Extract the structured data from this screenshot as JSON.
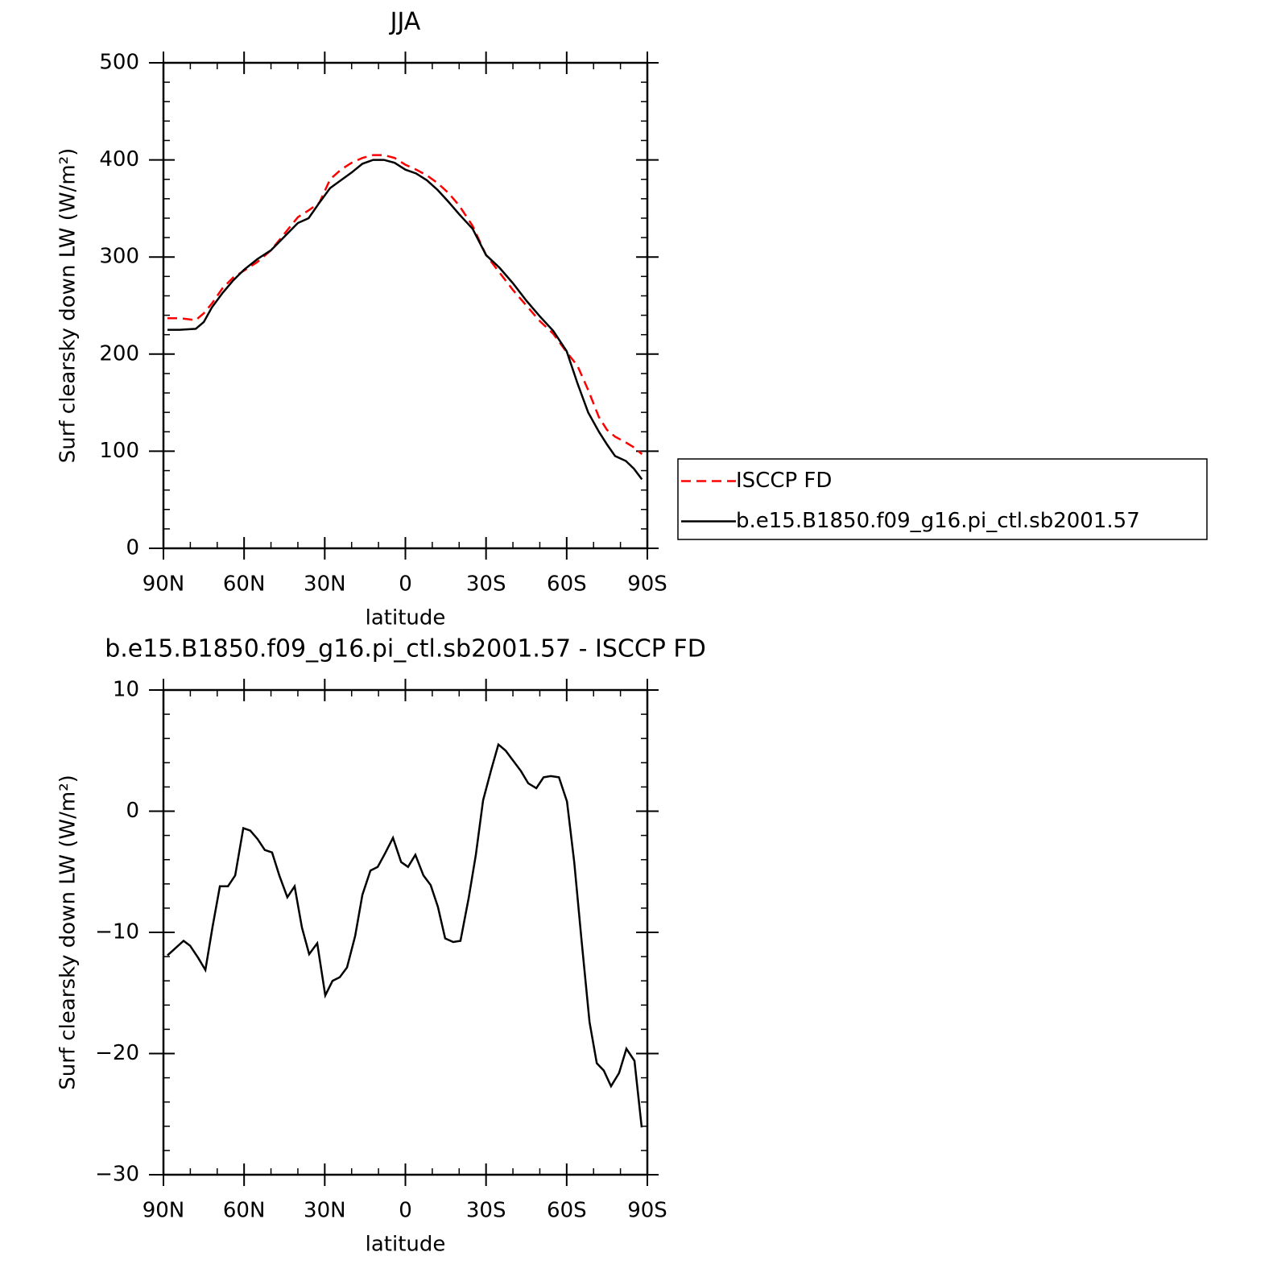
{
  "chart_data": [
    {
      "type": "line",
      "title": "JJA",
      "x": [
        88.5,
        84,
        78,
        75,
        72,
        68,
        64,
        60,
        55,
        50,
        45,
        40,
        36,
        32,
        28,
        24,
        20,
        16,
        12,
        8,
        4,
        0,
        -4,
        -8,
        -12,
        -16,
        -20,
        -25,
        -30,
        -35,
        -40,
        -45,
        -50,
        -55,
        -60,
        -64,
        -68,
        -72,
        -75,
        -78,
        -82,
        -85,
        -88
      ],
      "series": [
        {
          "name": "ISCCP FD",
          "color": "#ff0000",
          "linestyle": "dashed",
          "values": [
            237,
            237,
            235,
            242,
            252,
            268,
            279,
            286,
            295,
            307,
            324,
            341,
            348,
            356,
            380,
            390,
            397,
            402,
            405,
            405,
            402,
            395,
            390,
            384,
            376,
            366,
            353,
            332,
            302,
            284,
            266,
            250,
            234,
            221,
            202,
            188,
            163,
            135,
            122,
            115,
            109,
            104,
            97
          ]
        },
        {
          "name": "b.e15.B1850.f09_g16.pi_ctl.sb2001.57",
          "color": "#000000",
          "linestyle": "solid",
          "values": [
            225,
            225,
            226,
            233,
            248,
            263,
            276,
            287,
            298,
            307,
            321,
            335,
            340,
            356,
            371,
            379,
            387,
            396,
            400,
            400,
            397,
            390,
            386,
            379,
            369,
            357,
            344,
            329,
            302,
            289,
            273,
            255,
            239,
            224,
            203,
            170,
            140,
            120,
            107,
            95,
            90,
            82,
            71
          ]
        }
      ],
      "xlabel": "latitude",
      "ylabel": "Surf clearsky down LW (W/m²)",
      "xlim": [
        90,
        -90
      ],
      "ylim": [
        0,
        500
      ],
      "xticks": [
        {
          "value": 90,
          "label": "90N"
        },
        {
          "value": 60,
          "label": "60N"
        },
        {
          "value": 30,
          "label": "30N"
        },
        0,
        {
          "value": -30,
          "label": "30S"
        },
        {
          "value": -60,
          "label": "60S"
        },
        {
          "value": -90,
          "label": "90S"
        }
      ],
      "xminorticks": [
        80,
        70,
        50,
        40,
        20,
        10,
        -10,
        -20,
        -40,
        -50,
        -70,
        -80
      ],
      "yticks": [
        0,
        100,
        200,
        300,
        400,
        500
      ],
      "yminorticks": [
        20,
        40,
        60,
        80,
        120,
        140,
        160,
        180,
        220,
        240,
        260,
        280,
        320,
        340,
        360,
        380,
        420,
        440,
        460,
        480
      ],
      "legend": "right"
    },
    {
      "type": "line",
      "title": "b.e15.B1850.f09_g16.pi_ctl.sb2001.57 - ISCCP FD",
      "x": [
        88.5,
        82.5,
        80.1,
        77.1,
        74.4,
        71.7,
        69.0,
        66.0,
        63.3,
        60.3,
        57.7,
        55.0,
        52.3,
        49.6,
        46.9,
        43.9,
        41.2,
        38.5,
        35.8,
        32.8,
        29.8,
        27.1,
        24.4,
        21.7,
        18.7,
        16.0,
        13.0,
        10.3,
        7.6,
        4.6,
        1.6,
        -1.0,
        -3.7,
        -6.7,
        -9.4,
        -12.1,
        -14.8,
        -17.8,
        -20.5,
        -23.5,
        -26.2,
        -28.9,
        -31.9,
        -34.6,
        -37.3,
        -40.3,
        -43.0,
        -45.7,
        -48.7,
        -51.4,
        -54.1,
        -57.1,
        -60.1,
        -62.8,
        -65.5,
        -68.5,
        -71.2,
        -73.8,
        -76.5,
        -79.5,
        -82.2,
        -85.2,
        -87.9
      ],
      "series": [
        {
          "name": "b.e15.B1850.f09_g16.pi_ctl.sb2001.57 - ISCCP FD",
          "color": "#000000",
          "linestyle": "solid",
          "values": [
            -11.9,
            -10.7,
            -11.1,
            -12.1,
            -13.1,
            -9.5,
            -6.2,
            -6.2,
            -5.3,
            -1.4,
            -1.6,
            -2.3,
            -3.2,
            -3.4,
            -5.3,
            -7.1,
            -6.2,
            -9.6,
            -11.8,
            -10.9,
            -15.2,
            -14.0,
            -13.7,
            -12.9,
            -10.3,
            -6.9,
            -4.9,
            -4.6,
            -3.5,
            -2.2,
            -4.2,
            -4.6,
            -3.6,
            -5.3,
            -6.1,
            -7.9,
            -10.5,
            -10.8,
            -10.7,
            -7.2,
            -3.6,
            0.9,
            3.4,
            5.5,
            5.0,
            4.1,
            3.3,
            2.3,
            1.9,
            2.8,
            2.9,
            2.8,
            0.8,
            -4.2,
            -10.6,
            -17.4,
            -20.8,
            -21.4,
            -22.7,
            -21.6,
            -19.6,
            -20.6,
            -26.1
          ]
        }
      ],
      "xlabel": "latitude",
      "ylabel": "Surf clearsky down LW (W/m²)",
      "xlim": [
        90,
        -90
      ],
      "ylim": [
        -30,
        10
      ],
      "xticks": [
        {
          "value": 90,
          "label": "90N"
        },
        {
          "value": 60,
          "label": "60N"
        },
        {
          "value": 30,
          "label": "30N"
        },
        0,
        {
          "value": -30,
          "label": "30S"
        },
        {
          "value": -60,
          "label": "60S"
        },
        {
          "value": -90,
          "label": "90S"
        }
      ],
      "xminorticks": [
        80,
        70,
        50,
        40,
        20,
        10,
        -10,
        -20,
        -40,
        -50,
        -70,
        -80
      ],
      "yticks": [
        {
          "value": -30,
          "label": "−30"
        },
        {
          "value": -20,
          "label": "−20"
        },
        {
          "value": -10,
          "label": "−10"
        },
        0,
        10
      ],
      "yminorticks": [
        -28,
        -26,
        -24,
        -22,
        -18,
        -16,
        -14,
        -12,
        -8,
        -6,
        -4,
        -2,
        2,
        4,
        6,
        8
      ]
    }
  ]
}
